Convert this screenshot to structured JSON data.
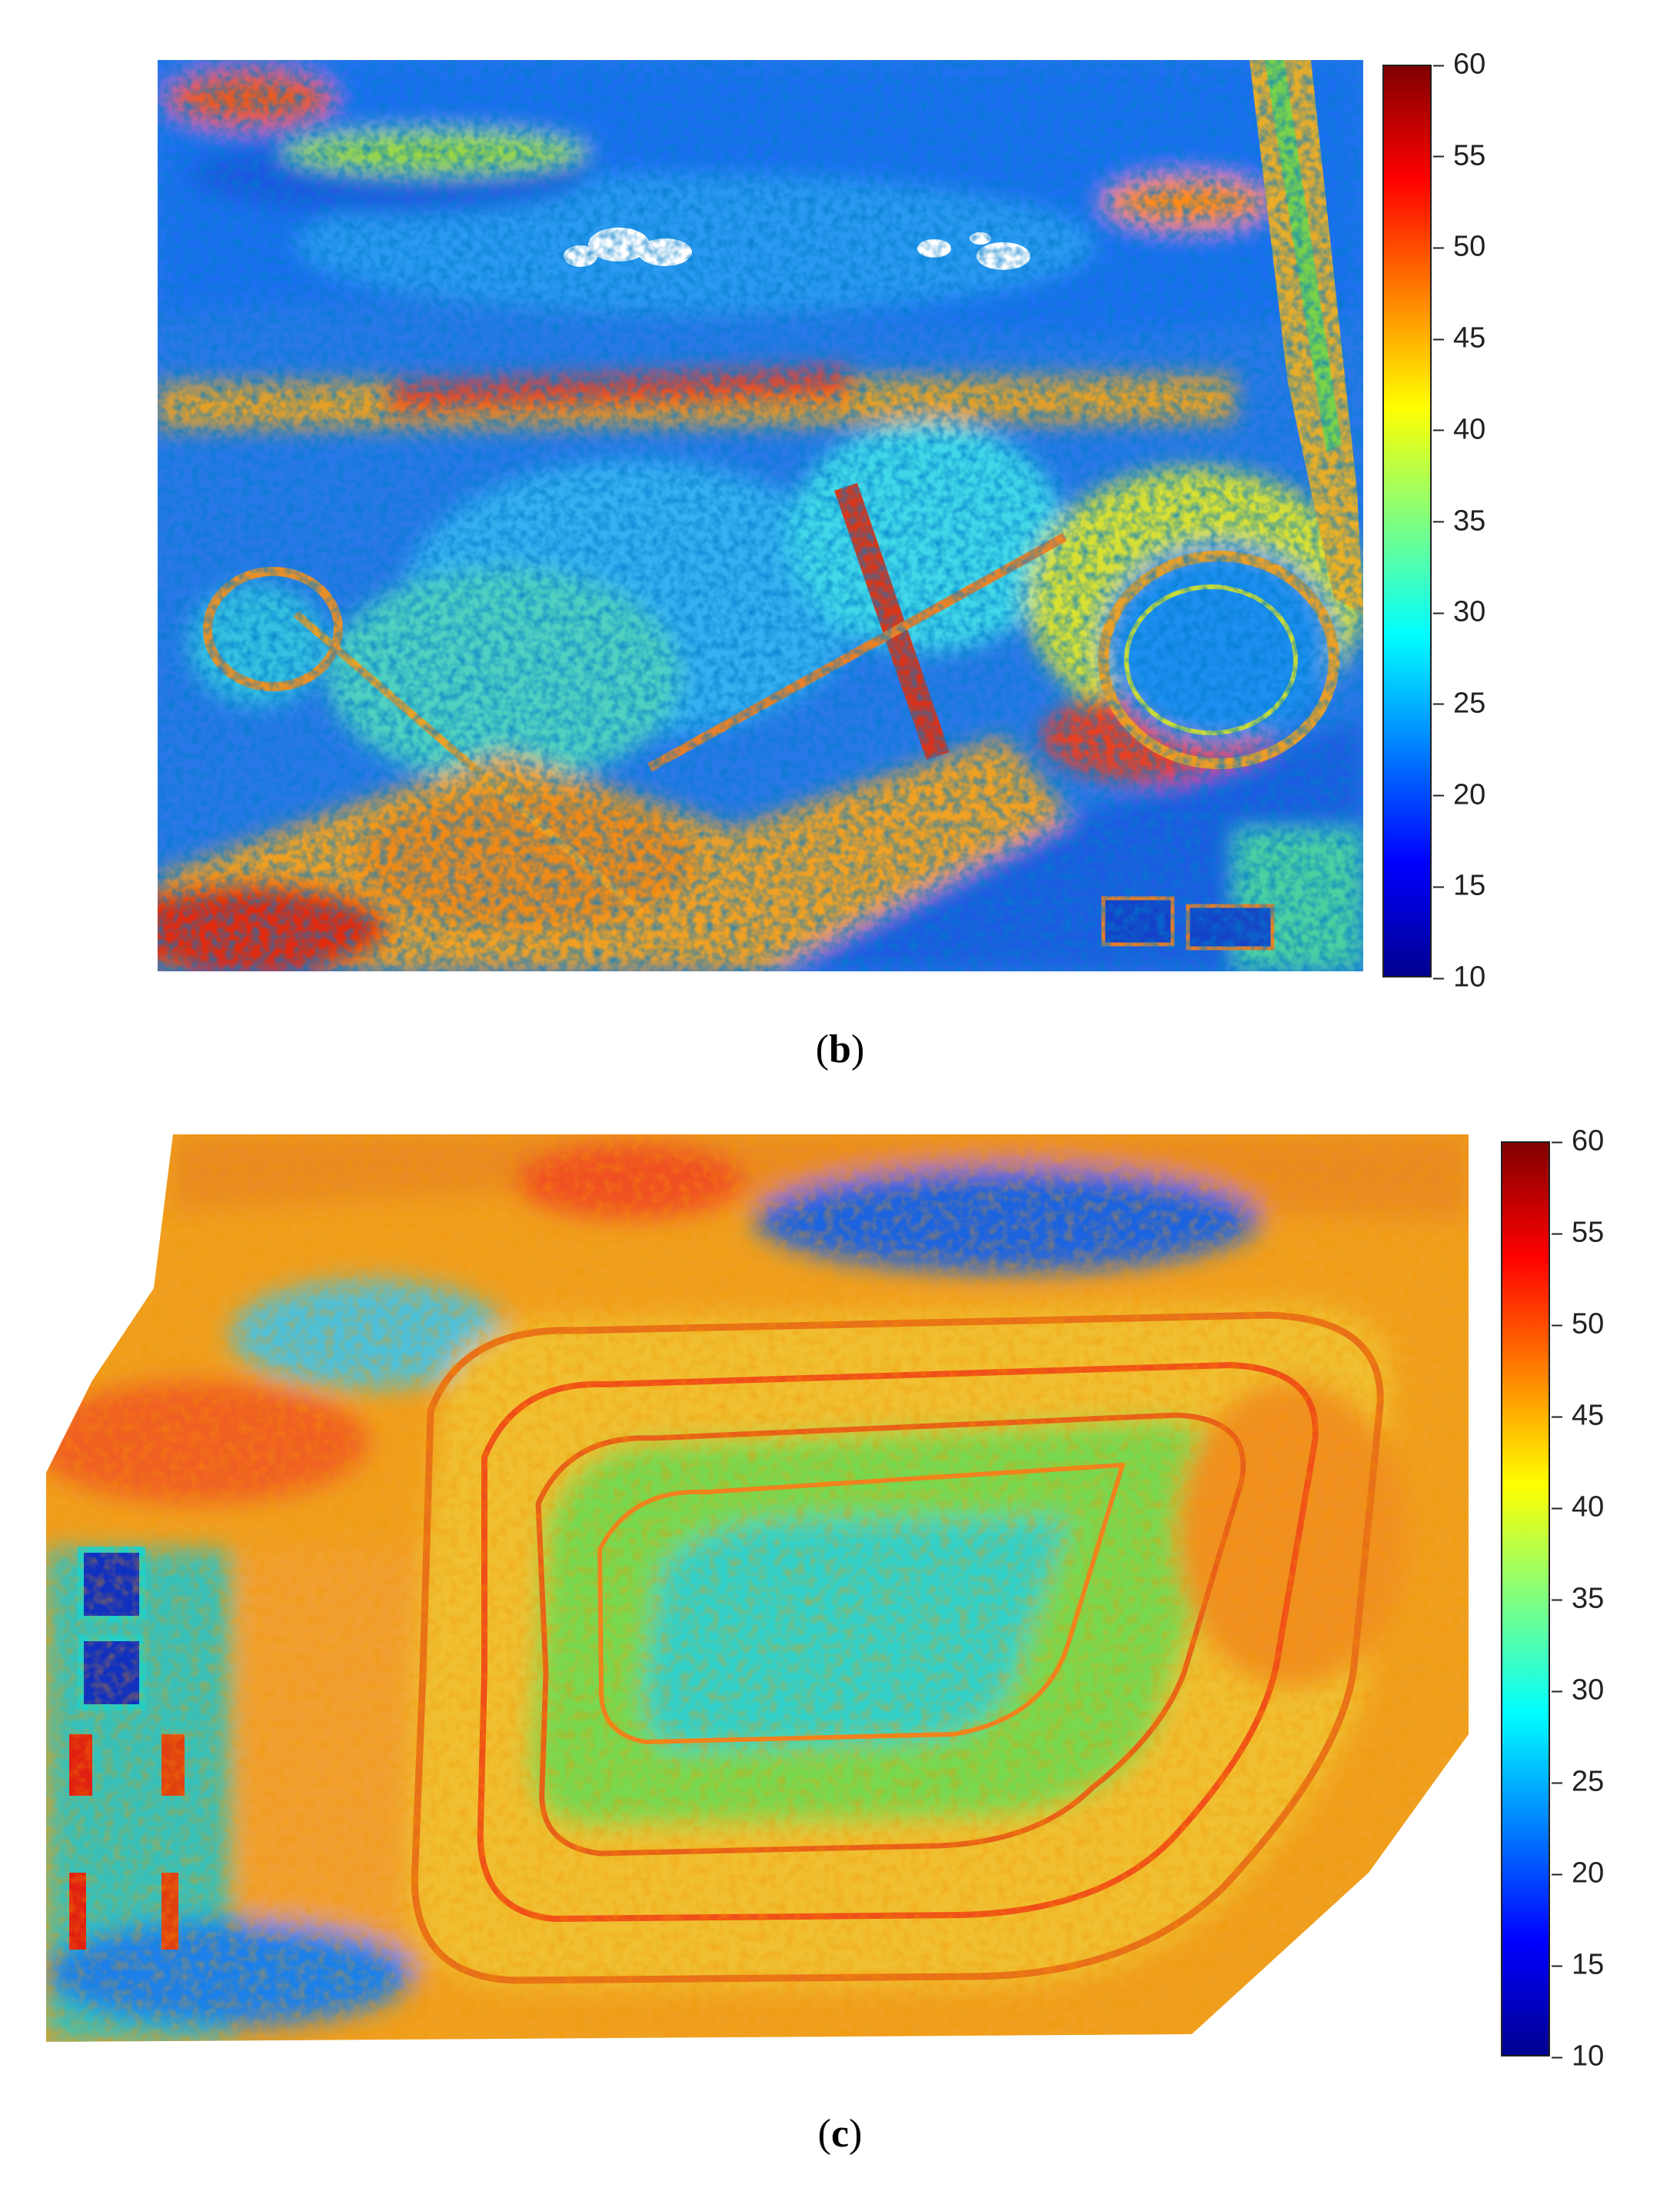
{
  "panels": [
    {
      "id": "b",
      "caption_open": "(",
      "caption_letter": "b",
      "caption_close": ")",
      "colorbar": {
        "min": 10,
        "max": 60,
        "ticks": [
          "60",
          "55",
          "50",
          "45",
          "40",
          "35",
          "30",
          "25",
          "20",
          "15",
          "10"
        ]
      }
    },
    {
      "id": "c",
      "caption_open": "(",
      "caption_letter": "c",
      "caption_close": ")",
      "colorbar": {
        "min": 10,
        "max": 60,
        "ticks": [
          "60",
          "55",
          "50",
          "45",
          "40",
          "35",
          "30",
          "25",
          "20",
          "15",
          "10"
        ]
      }
    }
  ],
  "colormap": "jet"
}
